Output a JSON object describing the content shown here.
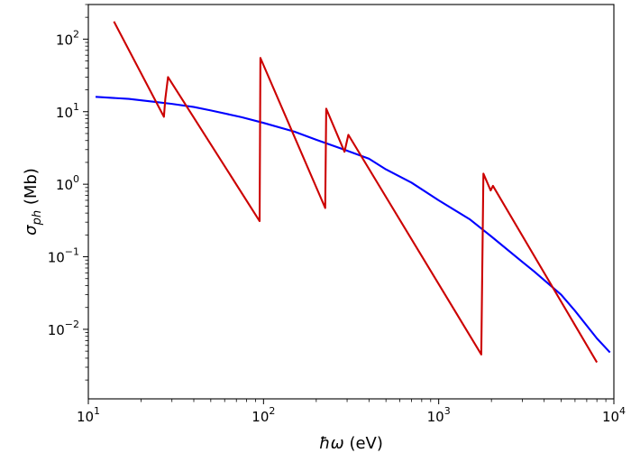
{
  "chart_data": {
    "type": "line",
    "xlabel_main": "ħω",
    "xlabel_unit": " (eV)",
    "ylabel_main": "σ",
    "ylabel_sub": "ph",
    "ylabel_unit": " (Mb)",
    "xscale": "log",
    "yscale": "log",
    "xlim": [
      10,
      10000
    ],
    "ylim": [
      0.0011,
      300
    ],
    "grid": false,
    "x_ticks": [
      {
        "value": 10,
        "base": "10",
        "exp": "1"
      },
      {
        "value": 100,
        "base": "10",
        "exp": "2"
      },
      {
        "value": 1000,
        "base": "10",
        "exp": "3"
      },
      {
        "value": 10000,
        "base": "10",
        "exp": "4"
      }
    ],
    "y_ticks": [
      {
        "value": 0.01,
        "base": "10",
        "exp": "−2"
      },
      {
        "value": 0.1,
        "base": "10",
        "exp": "−1"
      },
      {
        "value": 1,
        "base": "10",
        "exp": "0"
      },
      {
        "value": 10,
        "base": "10",
        "exp": "1"
      },
      {
        "value": 100,
        "base": "10",
        "exp": "2"
      }
    ],
    "series": [
      {
        "color": "#0000ff",
        "points": [
          [
            11,
            16
          ],
          [
            17,
            15
          ],
          [
            25,
            13.5
          ],
          [
            30,
            12.8
          ],
          [
            40,
            11.6
          ],
          [
            50,
            10.4
          ],
          [
            75,
            8.4
          ],
          [
            100,
            7
          ],
          [
            150,
            5.3
          ],
          [
            200,
            4.1
          ],
          [
            300,
            2.9
          ],
          [
            400,
            2.25
          ],
          [
            500,
            1.6
          ],
          [
            700,
            1.05
          ],
          [
            1000,
            0.6
          ],
          [
            1500,
            0.33
          ],
          [
            2000,
            0.19
          ],
          [
            3000,
            0.085
          ],
          [
            3500,
            0.063
          ],
          [
            5000,
            0.03
          ],
          [
            6000,
            0.018
          ],
          [
            8000,
            0.0075
          ],
          [
            9500,
            0.0048
          ]
        ]
      },
      {
        "color": "#cc0000",
        "points": [
          [
            14,
            175
          ],
          [
            27,
            8.5
          ],
          [
            27.5,
            15
          ],
          [
            28.5,
            30
          ],
          [
            95,
            0.31
          ],
          [
            96,
            55
          ],
          [
            225,
            0.47
          ],
          [
            228,
            11
          ],
          [
            290,
            2.8
          ],
          [
            305,
            4.8
          ],
          [
            1750,
            0.0045
          ],
          [
            1800,
            1.4
          ],
          [
            1980,
            0.82
          ],
          [
            2040,
            0.95
          ],
          [
            8000,
            0.0035
          ]
        ]
      }
    ]
  }
}
